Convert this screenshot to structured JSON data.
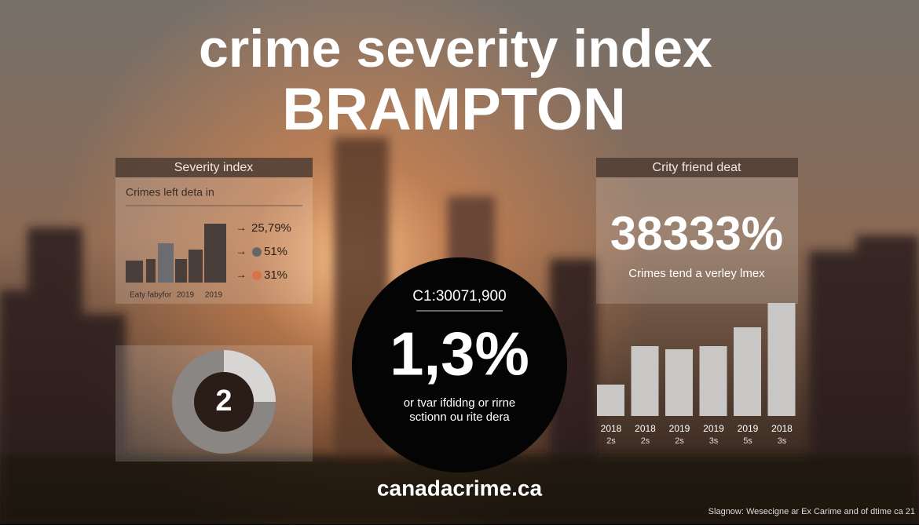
{
  "header": {
    "title": "crime severity index",
    "city": "BRAMPTON"
  },
  "left_panel": {
    "heading": "Severity index",
    "subtitle": "Crimes left deta in",
    "chart": {
      "values": [
        28,
        30,
        50,
        30,
        42,
        75
      ],
      "labels": [
        "Eaty fabyfor",
        "2019",
        "2019"
      ]
    },
    "legend": [
      {
        "arrow": "→",
        "value": "25,79%"
      },
      {
        "arrow": "→",
        "value": "51%"
      },
      {
        "arrow": "→",
        "value": "31%"
      }
    ]
  },
  "donut_panel": {
    "value": "2"
  },
  "center_circle": {
    "top": "C1:30071,900",
    "big": "1,3%",
    "line1": "or tvar ifdidng or rirne",
    "line2": "sctionn ou rite dera"
  },
  "right_panel": {
    "heading": "Crity friend deat",
    "big": "38333%",
    "caption": "Crimes tend a verley lmex"
  },
  "right_chart": {
    "values": [
      40,
      89,
      85,
      89,
      113,
      144
    ],
    "years": [
      "2018",
      "2018",
      "2019",
      "2019",
      "2019",
      "2018"
    ],
    "sublabels": [
      "2s",
      "2s",
      "2s",
      "3s",
      "5s",
      "3s"
    ]
  },
  "footer": {
    "site": "canadacrime.ca",
    "note": "Slagnow: Wesecigne ar Ex Carime and of dtime ca 21"
  }
}
